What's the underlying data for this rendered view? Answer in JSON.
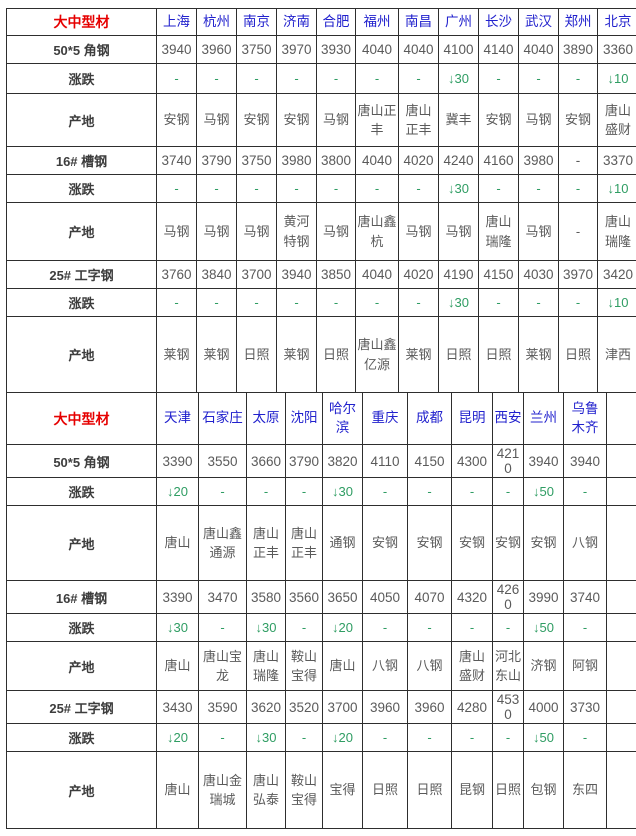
{
  "colors": {
    "section_title_red": "#e60000",
    "city_link_blue": "#2121cd",
    "price_gray": "#5a5a5a",
    "row_label_dark": "#3d3d3d",
    "change_green": "#2f9d63",
    "grid_border": "#2e2e2e",
    "background": "#ffffff"
  },
  "row_labels": {
    "change": "涨跌",
    "origin": "产地"
  },
  "sections": [
    {
      "title": "大中型材",
      "cities": [
        "上海",
        "杭州",
        "南京",
        "济南",
        "合肥",
        "福州",
        "南昌",
        "广州",
        "长沙",
        "武汉",
        "郑州",
        "北京"
      ],
      "products": [
        {
          "name": "50*5 角钢",
          "prices": [
            "3940",
            "3960",
            "3750",
            "3970",
            "3930",
            "4040",
            "4040",
            "4100",
            "4140",
            "4040",
            "3890",
            "3360"
          ],
          "changes": [
            "-",
            "-",
            "-",
            "-",
            "-",
            "-",
            "-",
            "↓30",
            "-",
            "-",
            "-",
            "↓10"
          ],
          "origins": [
            "安钢",
            "马钢",
            "安钢",
            "安钢",
            "马钢",
            "唐山正丰",
            "唐山正丰",
            "冀丰",
            "安钢",
            "马钢",
            "安钢",
            "唐山盛财"
          ]
        },
        {
          "name": "16# 槽钢",
          "prices": [
            "3740",
            "3790",
            "3750",
            "3980",
            "3800",
            "4040",
            "4020",
            "4240",
            "4160",
            "3980",
            "-",
            "3370"
          ],
          "changes": [
            "-",
            "-",
            "-",
            "-",
            "-",
            "-",
            "-",
            "↓30",
            "-",
            "-",
            "-",
            "↓10"
          ],
          "origins": [
            "马钢",
            "马钢",
            "马钢",
            "黄河特钢",
            "马钢",
            "唐山鑫杭",
            "马钢",
            "马钢",
            "唐山瑞隆",
            "马钢",
            "-",
            "唐山瑞隆"
          ]
        },
        {
          "name": "25# 工字钢",
          "prices": [
            "3760",
            "3840",
            "3700",
            "3940",
            "3850",
            "4040",
            "4020",
            "4190",
            "4150",
            "4030",
            "3970",
            "3420"
          ],
          "changes": [
            "-",
            "-",
            "-",
            "-",
            "-",
            "-",
            "-",
            "↓30",
            "-",
            "-",
            "-",
            "↓10"
          ],
          "origins": [
            "莱钢",
            "莱钢",
            "日照",
            "莱钢",
            "日照",
            "唐山鑫亿源",
            "莱钢",
            "日照",
            "日照",
            "莱钢",
            "日照",
            "津西"
          ]
        }
      ]
    },
    {
      "title": "大中型材",
      "cities": [
        "天津",
        "石家庄",
        "太原",
        "沈阳",
        "哈尔滨",
        "重庆",
        "成都",
        "昆明",
        "西安",
        "兰州",
        "乌鲁木齐",
        ""
      ],
      "products": [
        {
          "name": "50*5 角钢",
          "prices": [
            "3390",
            "3550",
            "3660",
            "3790",
            "3820",
            "4110",
            "4150",
            "4300",
            "4210",
            "3940",
            "3940",
            ""
          ],
          "changes": [
            "↓20",
            "-",
            "-",
            "-",
            "↓30",
            "-",
            "-",
            "-",
            "-",
            "↓50",
            "-",
            ""
          ],
          "origins": [
            "唐山",
            "唐山鑫通源",
            "唐山正丰",
            "唐山正丰",
            "通钢",
            "安钢",
            "安钢",
            "安钢",
            "安钢",
            "安钢",
            "八钢",
            ""
          ]
        },
        {
          "name": "16# 槽钢",
          "prices": [
            "3390",
            "3470",
            "3580",
            "3560",
            "3650",
            "4050",
            "4070",
            "4320",
            "4260",
            "3990",
            "3740",
            ""
          ],
          "changes": [
            "↓30",
            "-",
            "↓30",
            "-",
            "↓20",
            "-",
            "-",
            "-",
            "-",
            "↓50",
            "-",
            ""
          ],
          "origins": [
            "唐山",
            "唐山宝龙",
            "唐山瑞隆",
            "鞍山宝得",
            "唐山",
            "八钢",
            "八钢",
            "唐山盛财",
            "河北东山",
            "济钢",
            "阿钢",
            ""
          ]
        },
        {
          "name": "25# 工字钢",
          "prices": [
            "3430",
            "3590",
            "3620",
            "3520",
            "3700",
            "3960",
            "3960",
            "4280",
            "4530",
            "4000",
            "3730",
            ""
          ],
          "changes": [
            "↓20",
            "-",
            "↓30",
            "-",
            "↓20",
            "-",
            "-",
            "-",
            "-",
            "↓50",
            "-",
            ""
          ],
          "origins": [
            "唐山",
            "唐山金瑞城",
            "唐山弘泰",
            "鞍山宝得",
            "宝得",
            "日照",
            "日照",
            "昆钢",
            "日照",
            "包钢",
            "东四",
            ""
          ]
        }
      ]
    }
  ]
}
